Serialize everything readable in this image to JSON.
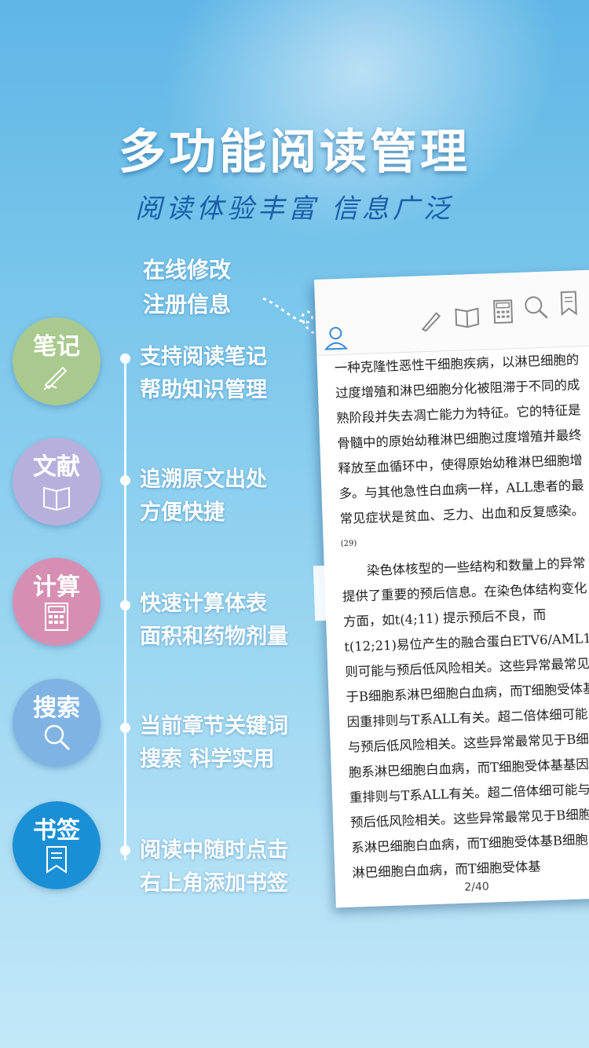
{
  "header": {
    "title": "多功能阅读管理",
    "subtitle": "阅读体验丰富 信息广泛"
  },
  "top_note": {
    "line1": "在线修改",
    "line2": "注册信息"
  },
  "features": [
    {
      "label": "笔记",
      "line1": "支持阅读笔记",
      "line2": "帮助知识管理",
      "color": "#a9c98f",
      "icon": "pen-icon"
    },
    {
      "label": "文献",
      "line1": "追溯原文出处",
      "line2": "方便快捷",
      "color": "#b8b0dc",
      "icon": "book-icon"
    },
    {
      "label": "计算",
      "line1": "快速计算体表",
      "line2": "面积和药物剂量",
      "color": "#d68fb2",
      "icon": "calculator-icon"
    },
    {
      "label": "搜索",
      "line1": "当前章节关键词",
      "line2": "搜索  科学实用",
      "color": "#7fb3e3",
      "icon": "search-icon"
    },
    {
      "label": "书签",
      "line1": "阅读中随时点击",
      "line2": "右上角添加书签",
      "color": "#1a8fd6",
      "icon": "bookmark-icon"
    }
  ],
  "reader": {
    "paragraph1": "一种克隆性恶性干细胞疾病，以淋巴细胞的过度增殖和淋巴细胞分化被阻滞于不同的成熟阶段并失去凋亡能力为特征。它的特征是骨髓中的原始幼稚淋巴细胞过度增殖并最终释放至血循环中，使得原始幼稚淋巴细胞增多。与其他急性白血病一样，ALL患者的最常见症状是贫血、乏力、出血和反复感染。",
    "citation": "(29)",
    "paragraph2": "染色体核型的一些结构和数量上的异常提供了重要的预后信息。在染色体结构变化方面，如t(4;11) 提示预后不良，而t(12;21)易位产生的融合蛋白ETV6/AML1则可能与预后低风险相关。这些异常最常见于B细胞系淋巴细胞白血病，而T细胞受体基因重排则与T系ALL有关。超二倍体细可能与预后低风险相关。这些异常最常见于B细胞系淋巴细胞白血病，而T细胞受体基基因重排则与T系ALL有关。超二倍体细可能与预后低风险相关。这些异常最常见于B细胞系淋巴细胞白血病，而T细胞受体基B细胞系淋巴细胞白血病，而T细胞受体基",
    "page_indicator": "2/40"
  }
}
